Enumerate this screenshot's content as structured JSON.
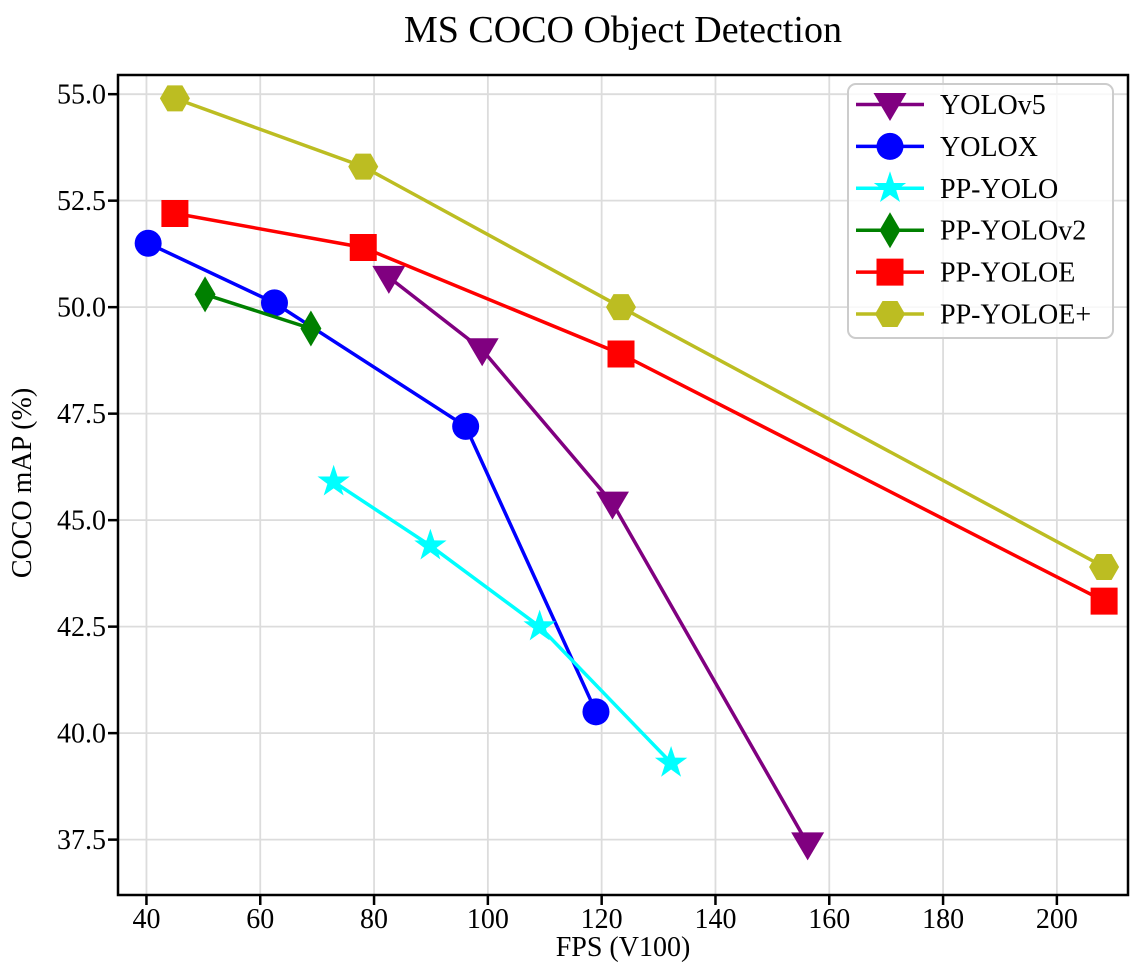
{
  "figure": {
    "background": "#ffffff",
    "text_color": "#000000",
    "grid_color": "#dcdcdc",
    "spine_color": "#000000",
    "legend": {
      "border_color": "#cccccc",
      "background": "rgba(255,255,255,0.8)"
    }
  },
  "chart_data": {
    "type": "line",
    "title": "MS COCO Object Detection",
    "xlabel": "FPS (V100)",
    "ylabel": "COCO mAP (%)",
    "xlim": [
      35,
      212.5
    ],
    "ylim": [
      36.2,
      55.45
    ],
    "x_tick_labels": [
      "40",
      "60",
      "80",
      "100",
      "120",
      "140",
      "160",
      "180",
      "200"
    ],
    "y_tick_labels": [
      "37.5",
      "40.0",
      "42.5",
      "45.0",
      "47.5",
      "50.0",
      "52.5",
      "55.0"
    ],
    "grid": true,
    "legend_position": "upper right",
    "series": [
      {
        "name": "YOLOv5",
        "color": "#800080",
        "marker": "triangle-down",
        "points": [
          [
            82.6,
            50.7
          ],
          [
            99.0,
            49.0
          ],
          [
            121.9,
            45.4
          ],
          [
            156.2,
            37.4
          ]
        ]
      },
      {
        "name": "YOLOX",
        "color": "#0000ff",
        "marker": "circle",
        "points": [
          [
            40.3,
            51.5
          ],
          [
            62.5,
            50.1
          ],
          [
            96.1,
            47.2
          ],
          [
            119.0,
            40.5
          ]
        ]
      },
      {
        "name": "PP-YOLO",
        "color": "#00ffff",
        "marker": "star",
        "points": [
          [
            72.9,
            45.9
          ],
          [
            89.9,
            44.4
          ],
          [
            109.1,
            42.5
          ],
          [
            132.2,
            39.3
          ]
        ]
      },
      {
        "name": "PP-YOLOv2",
        "color": "#008000",
        "marker": "thin-diamond",
        "points": [
          [
            50.3,
            50.3
          ],
          [
            68.9,
            49.5
          ]
        ]
      },
      {
        "name": "PP-YOLOE",
        "color": "#ff0000",
        "marker": "square",
        "points": [
          [
            45.0,
            52.2
          ],
          [
            78.1,
            51.4
          ],
          [
            123.4,
            48.9
          ],
          [
            208.3,
            43.1
          ]
        ]
      },
      {
        "name": "PP-YOLOE+",
        "color": "#bcbd22",
        "marker": "hexagon",
        "points": [
          [
            45.0,
            54.9
          ],
          [
            78.1,
            53.3
          ],
          [
            123.4,
            50.0
          ],
          [
            208.3,
            43.9
          ]
        ]
      }
    ]
  }
}
